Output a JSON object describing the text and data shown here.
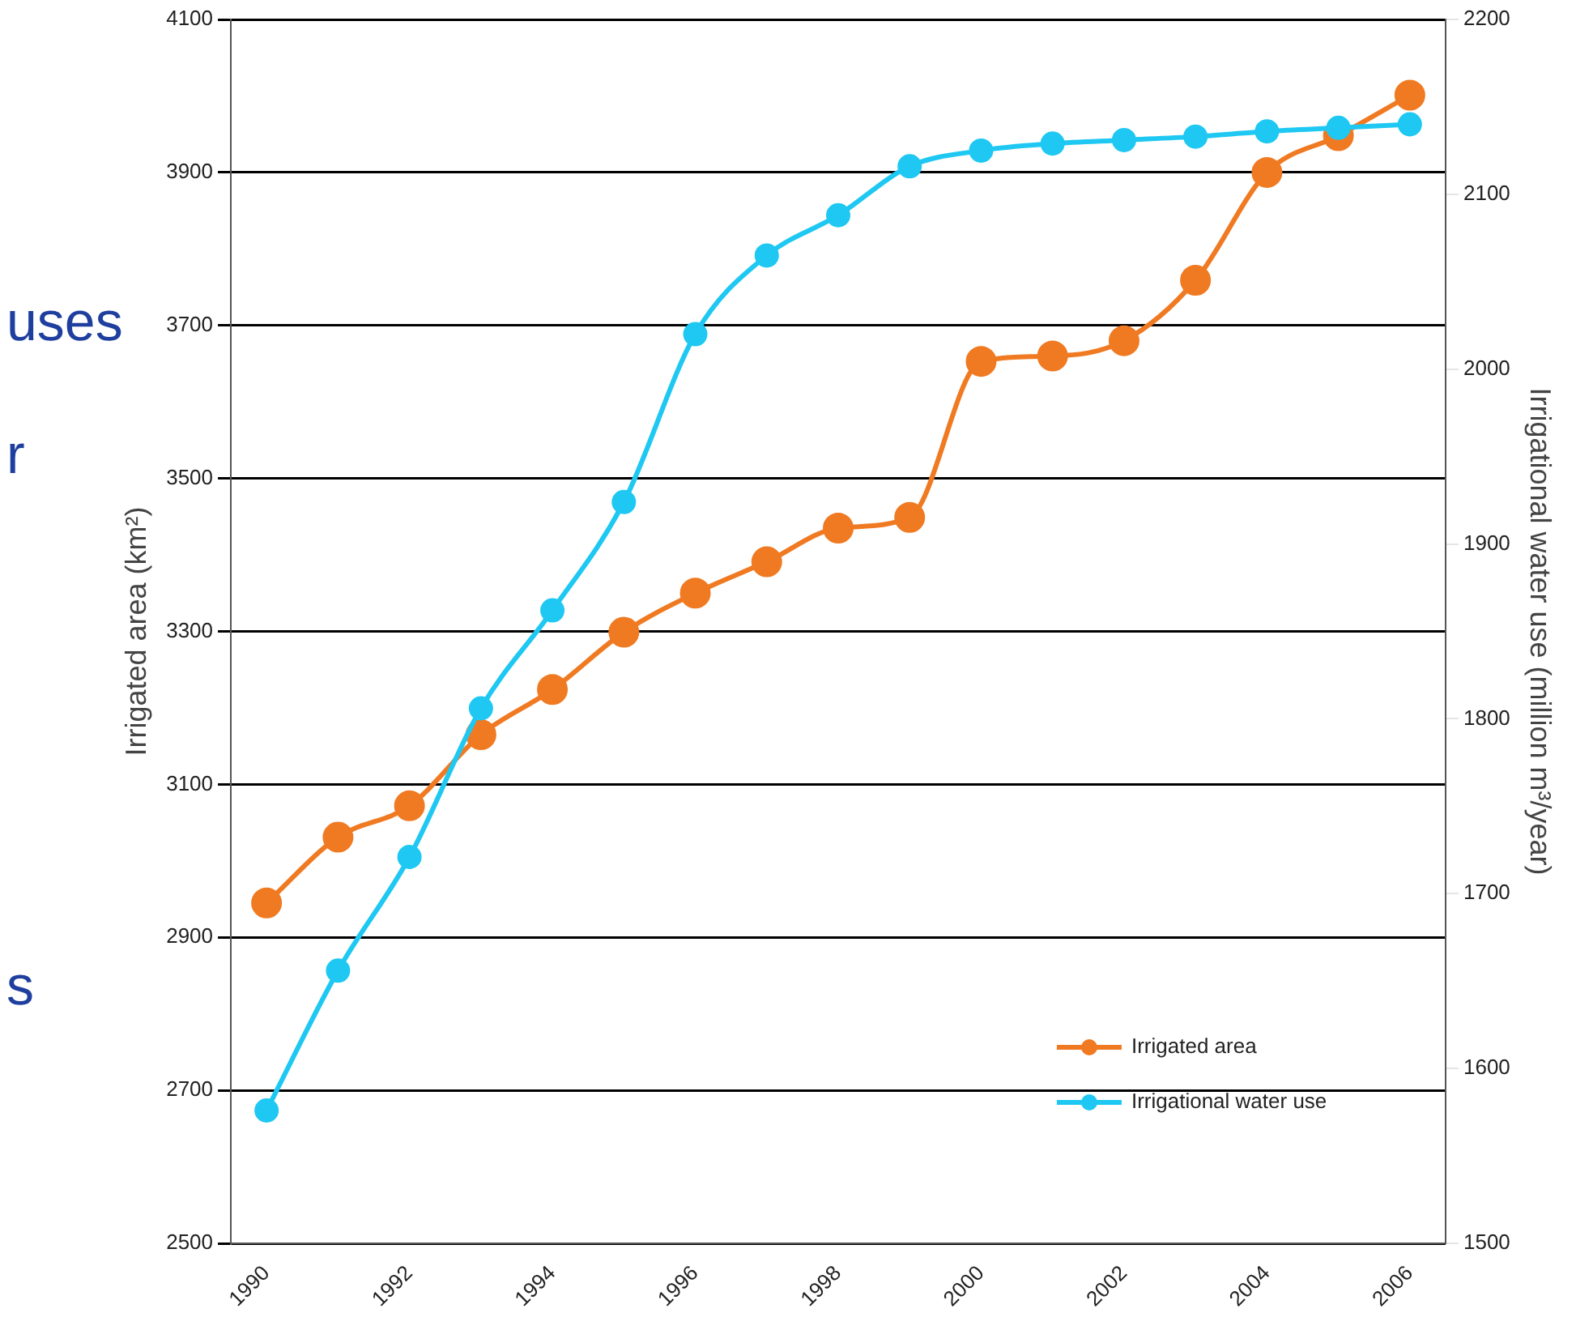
{
  "chart_data": {
    "type": "line",
    "ylabel": "Irrigated area (km²)",
    "y2label": "Irrigational water use (million m³/year)",
    "x": [
      1990,
      1991,
      1992,
      1993,
      1994,
      1995,
      1996,
      1997,
      1998,
      1999,
      2000,
      2001,
      2002,
      2003,
      2004,
      2005,
      2006
    ],
    "xlim": [
      1989.5,
      2006.5
    ],
    "xticks": [
      1990,
      1992,
      1994,
      1996,
      1998,
      2000,
      2002,
      2004,
      2006
    ],
    "ylim": [
      2500,
      4100
    ],
    "yticks": [
      2500,
      2700,
      2900,
      3100,
      3300,
      3500,
      3700,
      3900,
      4100
    ],
    "y2lim": [
      1500,
      2200
    ],
    "y2ticks": [
      1500,
      1600,
      1700,
      1800,
      1900,
      2000,
      2100,
      2200
    ],
    "series": [
      {
        "name": "Irrigated area",
        "color": "#f07a22",
        "values": [
          2945,
          3031,
          3072,
          3165,
          3224,
          3299,
          3350,
          3391,
          3435,
          3449,
          3653,
          3660,
          3680,
          3759,
          3900,
          3948,
          4001
        ]
      },
      {
        "name": "Irrigational water use",
        "color": "#1ec8f2",
        "axis": "y2",
        "values": [
          1576,
          1656,
          1721,
          1806,
          1862,
          1924,
          2020,
          2065,
          2088,
          2116,
          2125,
          2129,
          2131,
          2133,
          2136,
          2138,
          2140
        ]
      }
    ],
    "grid": "y",
    "legend": "bottom right",
    "marker": "circle",
    "line_style": "solid",
    "annotations": [
      "uses",
      "r",
      "s"
    ]
  }
}
